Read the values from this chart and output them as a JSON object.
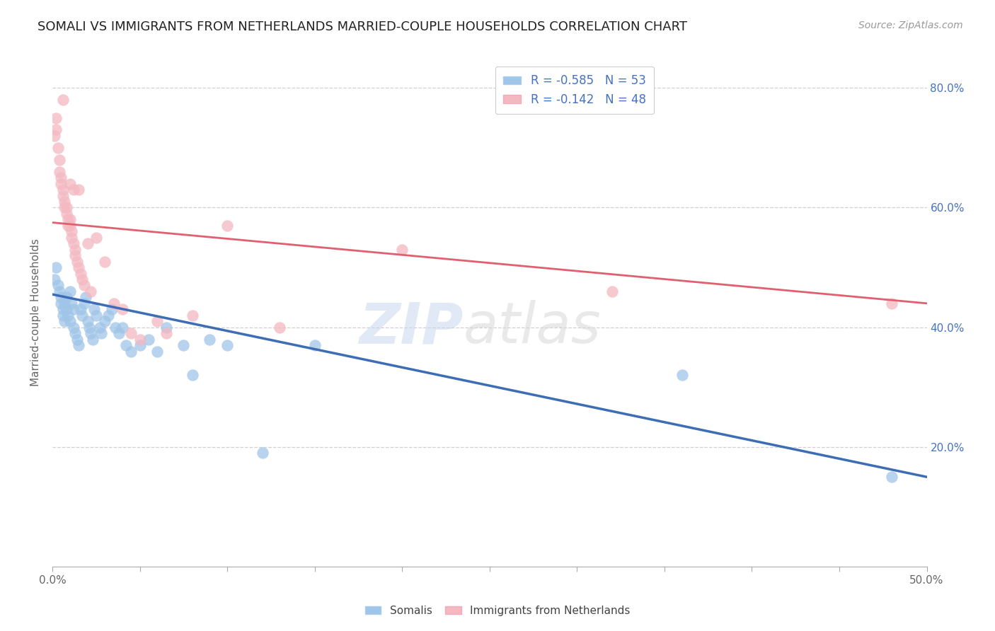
{
  "title": "SOMALI VS IMMIGRANTS FROM NETHERLANDS MARRIED-COUPLE HOUSEHOLDS CORRELATION CHART",
  "source": "Source: ZipAtlas.com",
  "ylabel": "Married-couple Households",
  "legend1_label": "R = -0.585   N = 53",
  "legend2_label": "R = -0.142   N = 48",
  "legend_bottom1": "Somalis",
  "legend_bottom2": "Immigrants from Netherlands",
  "blue_color": "#9fc5e8",
  "pink_color": "#f4b8c1",
  "blue_line_color": "#3d6eb5",
  "pink_line_color": "#e06070",
  "blue_scatter_x": [
    0.001,
    0.002,
    0.003,
    0.004,
    0.005,
    0.005,
    0.006,
    0.006,
    0.007,
    0.007,
    0.008,
    0.008,
    0.009,
    0.01,
    0.01,
    0.011,
    0.012,
    0.012,
    0.013,
    0.014,
    0.015,
    0.016,
    0.017,
    0.018,
    0.019,
    0.02,
    0.021,
    0.022,
    0.023,
    0.024,
    0.025,
    0.027,
    0.028,
    0.03,
    0.032,
    0.034,
    0.036,
    0.038,
    0.04,
    0.042,
    0.045,
    0.05,
    0.055,
    0.06,
    0.065,
    0.075,
    0.08,
    0.09,
    0.1,
    0.12,
    0.15,
    0.36,
    0.48
  ],
  "blue_scatter_y": [
    0.48,
    0.5,
    0.47,
    0.46,
    0.45,
    0.44,
    0.43,
    0.42,
    0.41,
    0.44,
    0.43,
    0.45,
    0.42,
    0.41,
    0.46,
    0.44,
    0.43,
    0.4,
    0.39,
    0.38,
    0.37,
    0.43,
    0.42,
    0.44,
    0.45,
    0.41,
    0.4,
    0.39,
    0.38,
    0.43,
    0.42,
    0.4,
    0.39,
    0.41,
    0.42,
    0.43,
    0.4,
    0.39,
    0.4,
    0.37,
    0.36,
    0.37,
    0.38,
    0.36,
    0.4,
    0.37,
    0.32,
    0.38,
    0.37,
    0.19,
    0.37,
    0.32,
    0.15
  ],
  "pink_scatter_x": [
    0.001,
    0.002,
    0.002,
    0.003,
    0.004,
    0.004,
    0.005,
    0.005,
    0.006,
    0.006,
    0.006,
    0.007,
    0.007,
    0.008,
    0.008,
    0.009,
    0.009,
    0.01,
    0.01,
    0.01,
    0.011,
    0.011,
    0.012,
    0.012,
    0.013,
    0.013,
    0.014,
    0.015,
    0.015,
    0.016,
    0.017,
    0.018,
    0.02,
    0.022,
    0.025,
    0.03,
    0.035,
    0.04,
    0.045,
    0.05,
    0.06,
    0.065,
    0.08,
    0.1,
    0.13,
    0.2,
    0.32,
    0.48
  ],
  "pink_scatter_y": [
    0.72,
    0.75,
    0.73,
    0.7,
    0.68,
    0.66,
    0.65,
    0.64,
    0.63,
    0.78,
    0.62,
    0.61,
    0.6,
    0.6,
    0.59,
    0.58,
    0.57,
    0.64,
    0.58,
    0.57,
    0.56,
    0.55,
    0.54,
    0.63,
    0.53,
    0.52,
    0.51,
    0.63,
    0.5,
    0.49,
    0.48,
    0.47,
    0.54,
    0.46,
    0.55,
    0.51,
    0.44,
    0.43,
    0.39,
    0.38,
    0.41,
    0.39,
    0.42,
    0.57,
    0.4,
    0.53,
    0.46,
    0.44
  ],
  "xmin": 0.0,
  "xmax": 0.5,
  "ymin": 0.0,
  "ymax": 0.85,
  "ytick_vals": [
    0.2,
    0.4,
    0.6,
    0.8
  ],
  "ytick_labels": [
    "20.0%",
    "40.0%",
    "60.0%",
    "80.0%"
  ],
  "xtick_vals": [
    0.0,
    0.05,
    0.1,
    0.15,
    0.2,
    0.25,
    0.3,
    0.35,
    0.4,
    0.45,
    0.5
  ],
  "xtick_edge_labels": [
    "0.0%",
    "50.0%"
  ],
  "grid_color": "#d0d0d0",
  "background_color": "#ffffff",
  "watermark_zip": "ZIP",
  "watermark_atlas": "atlas",
  "title_fontsize": 13,
  "axis_fontsize": 11,
  "tick_fontsize": 11,
  "source_fontsize": 10
}
